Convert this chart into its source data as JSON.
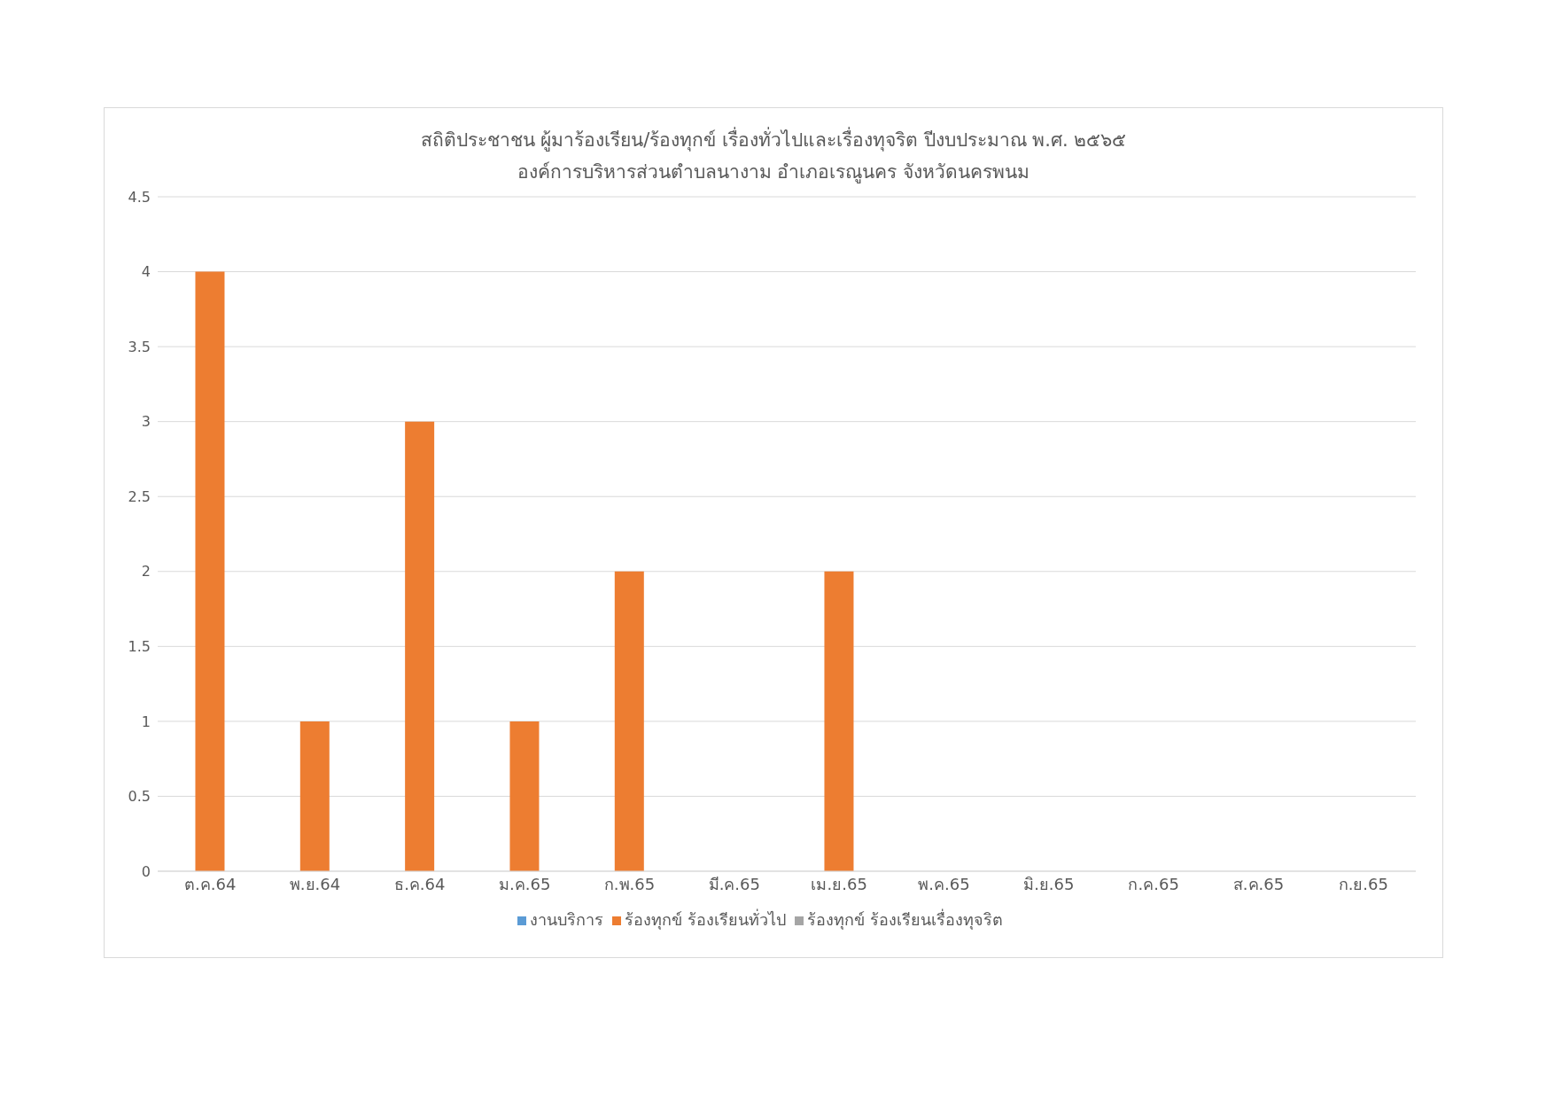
{
  "chart_data": {
    "type": "bar",
    "title": "สถิติประชาชน ผู้มาร้องเรียน/ร้องทุกข์ เรื่องทั่วไปและเรื่องทุจริต ปีงบประมาณ พ.ศ. ๒๕๖๕",
    "subtitle": "องค์การบริหารส่วนตำบลนางาม อำเภอเรณูนคร จังหวัดนครพนม",
    "categories": [
      "ต.ค.64",
      "พ.ย.64",
      "ธ.ค.64",
      "ม.ค.65",
      "ก.พ.65",
      "มี.ค.65",
      "เม.ย.65",
      "พ.ค.65",
      "มิ.ย.65",
      "ก.ค.65",
      "ส.ค.65",
      "ก.ย.65"
    ],
    "series": [
      {
        "name": "งานบริการ",
        "color": "#5b9bd5",
        "values": [
          0,
          0,
          0,
          0,
          0,
          0,
          0,
          0,
          0,
          0,
          0,
          0
        ]
      },
      {
        "name": "ร้องทุกข์ ร้องเรียนทั่วไป",
        "color": "#ed7d31",
        "values": [
          4,
          1,
          3,
          1,
          2,
          0,
          2,
          0,
          0,
          0,
          0,
          0
        ]
      },
      {
        "name": "ร้องทุกข์ ร้องเรียนเรื่องทุจริต",
        "color": "#a5a5a5",
        "values": [
          0,
          0,
          0,
          0,
          0,
          0,
          0,
          0,
          0,
          0,
          0,
          0
        ]
      }
    ],
    "ylim": [
      0,
      4.5
    ],
    "yticks": [
      0,
      0.5,
      1,
      1.5,
      2,
      2.5,
      3,
      3.5,
      4,
      4.5
    ],
    "grid": "y",
    "legend": "bottom"
  }
}
